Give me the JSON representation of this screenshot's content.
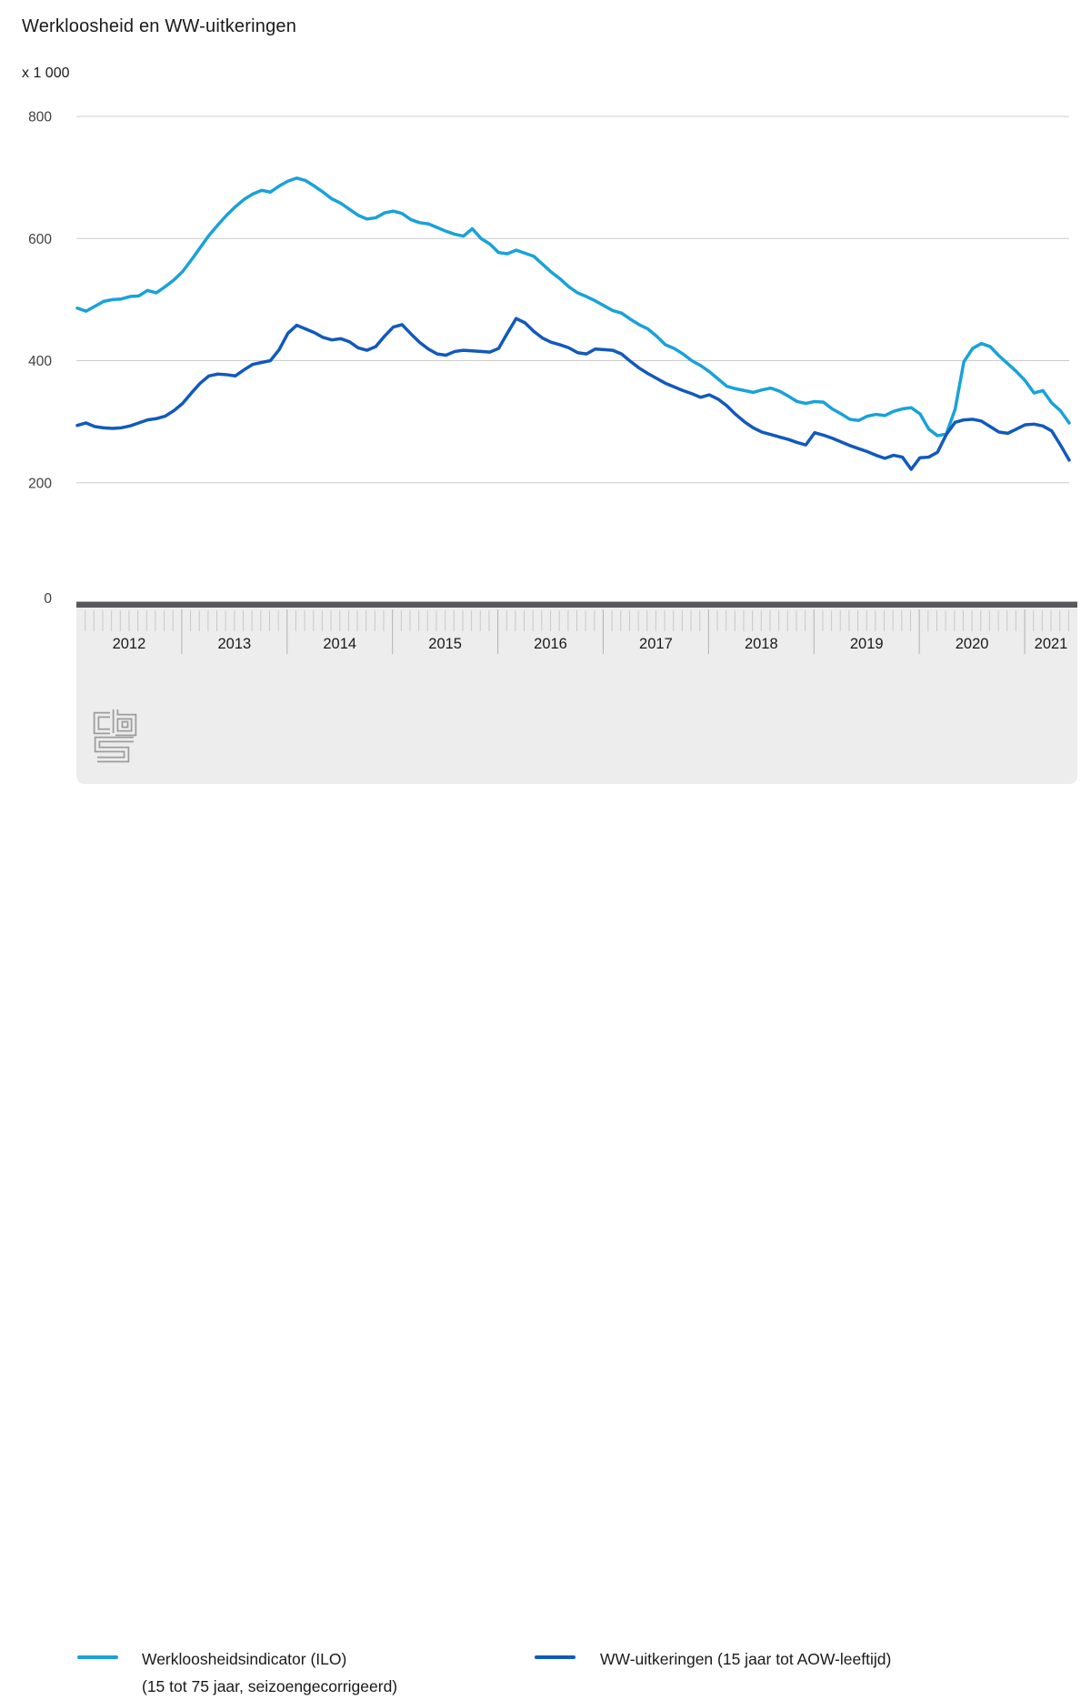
{
  "title": "Werkloosheid en WW-uitkeringen",
  "unit_label": "x 1 000",
  "colors": {
    "ilo": "#19a2d8",
    "ww": "#1159bd",
    "grid": "#cccccc",
    "axis_bar": "#58585a",
    "band_bg": "#ededed",
    "month_tick": "#c9c9c9",
    "year_separator": "#b2b2b2",
    "year_text": "#1a1a1a",
    "axis_text": "#404040",
    "logo": "#9d9d9d"
  },
  "y_axis": {
    "tick_labels": [
      "800",
      "600",
      "400",
      "200",
      "0"
    ],
    "min": 0,
    "max": 800
  },
  "x_axis": {
    "years": [
      "2012",
      "2013",
      "2014",
      "2015",
      "2016",
      "2017",
      "2018",
      "2019",
      "2020",
      "2021"
    ]
  },
  "legend": {
    "ilo": {
      "line1": "Werkloosheidsindicator (ILO)",
      "line2": "(15 tot 75 jaar, seizoengecorrigeerd)"
    },
    "ww": {
      "line1": "WW-uitkeringen (15 jaar tot AOW-leeftijd)",
      "line2": ""
    }
  },
  "logo": {
    "name": "cbs-logo"
  },
  "chart_data": {
    "type": "line",
    "title": "Werkloosheid en WW-uitkeringen",
    "unit": "x 1 000",
    "frequency": "monthly",
    "x_start": "2012-01",
    "x_end": "2021-06",
    "ylim": [
      0,
      800
    ],
    "y_ticks": [
      0,
      200,
      400,
      600,
      800
    ],
    "grid": "horizontal",
    "legend_position": "bottom",
    "x_year_labels": [
      "2012",
      "2013",
      "2014",
      "2015",
      "2016",
      "2017",
      "2018",
      "2019",
      "2020",
      "2021"
    ],
    "series": [
      {
        "name": "Werkloosheidsindicator (ILO) (15 tot 75 jaar, seizoengecorrigeerd)",
        "color": "#19a2d8",
        "values": [
          486,
          481,
          489,
          497,
          500,
          501,
          505,
          506,
          515,
          511,
          521,
          532,
          546,
          565,
          585,
          605,
          622,
          638,
          652,
          664,
          673,
          679,
          676,
          686,
          694,
          699,
          695,
          686,
          676,
          665,
          658,
          648,
          638,
          632,
          634,
          642,
          645,
          641,
          631,
          626,
          624,
          618,
          612,
          607,
          604,
          616,
          600,
          591,
          577,
          575,
          581,
          576,
          571,
          558,
          545,
          534,
          521,
          511,
          505,
          498,
          490,
          482,
          478,
          468,
          459,
          452,
          440,
          426,
          420,
          411,
          400,
          392,
          382,
          370,
          358,
          354,
          351,
          348,
          352,
          355,
          350,
          342,
          333,
          330,
          333,
          332,
          321,
          313,
          304,
          302,
          309,
          312,
          310,
          317,
          321,
          323,
          313,
          288,
          277,
          280,
          320,
          398,
          420,
          428,
          423,
          408,
          395,
          382,
          367,
          347,
          351,
          331,
          318,
          298
        ]
      },
      {
        "name": "WW-uitkeringen (15 jaar tot AOW-leeftijd)",
        "color": "#1159bd",
        "values": [
          294,
          298,
          292,
          290,
          289,
          290,
          293,
          298,
          303,
          305,
          309,
          318,
          330,
          347,
          363,
          375,
          378,
          377,
          375,
          385,
          394,
          397,
          400,
          418,
          445,
          458,
          452,
          446,
          438,
          434,
          436,
          431,
          421,
          417,
          423,
          440,
          455,
          459,
          444,
          430,
          419,
          411,
          409,
          415,
          417,
          416,
          415,
          414,
          420,
          445,
          469,
          462,
          448,
          437,
          430,
          426,
          421,
          413,
          411,
          419,
          418,
          417,
          411,
          399,
          388,
          379,
          371,
          363,
          357,
          351,
          346,
          340,
          344,
          337,
          326,
          312,
          300,
          290,
          283,
          279,
          275,
          271,
          266,
          262,
          282,
          278,
          273,
          267,
          261,
          256,
          251,
          245,
          240,
          245,
          242,
          222,
          241,
          242,
          250,
          279,
          299,
          303,
          304,
          301,
          292,
          283,
          281,
          288,
          295,
          296,
          293,
          285,
          262,
          237
        ]
      }
    ]
  }
}
